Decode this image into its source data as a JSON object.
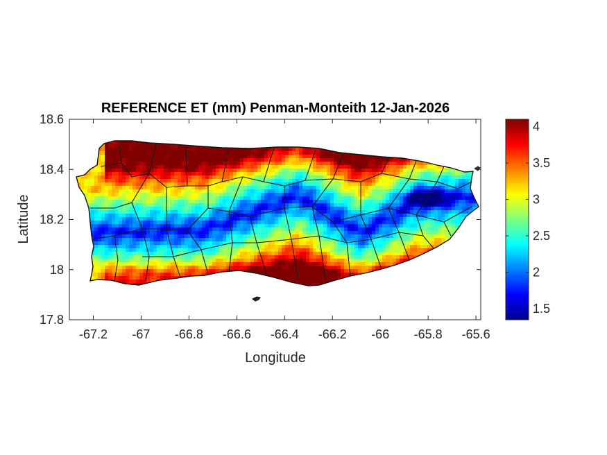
{
  "figure": {
    "title": "REFERENCE ET (mm) Penman-Monteith 12-Jan-2026",
    "xlabel": "Longitude",
    "ylabel": "Latitude"
  },
  "chart_data": {
    "type": "heatmap",
    "title": "REFERENCE ET (mm) Penman-Monteith 12-Jan-2026",
    "xlabel": "Longitude",
    "ylabel": "Latitude",
    "xlim": [
      -67.3,
      -65.58
    ],
    "ylim": [
      17.8,
      18.6
    ],
    "x_ticks": [
      -67.2,
      -67,
      -66.8,
      -66.6,
      -66.4,
      -66.2,
      -66,
      -65.8,
      -65.6
    ],
    "x_tick_labels": [
      "-67.2",
      "-67",
      "-66.8",
      "-66.6",
      "-66.4",
      "-66.2",
      "-66",
      "-65.8",
      "-65.6"
    ],
    "y_ticks": [
      17.8,
      18,
      18.2,
      18.4,
      18.6
    ],
    "y_tick_labels": [
      "17.8",
      "18",
      "18.2",
      "18.4",
      "18.6"
    ],
    "colorbar": {
      "colormap": "jet",
      "range": [
        1.35,
        4.1
      ],
      "ticks": [
        1.5,
        2,
        2.5,
        3,
        3.5,
        4
      ],
      "tick_labels": [
        "1.5",
        "2",
        "2.5",
        "3",
        "3.5",
        "4"
      ]
    },
    "grid": false,
    "description_values": {
      "coast_north": 3.9,
      "coast_south": 3.9,
      "central_mountains": 1.8,
      "northeast_peak_low": 1.5,
      "west_coast": 3.2
    }
  }
}
